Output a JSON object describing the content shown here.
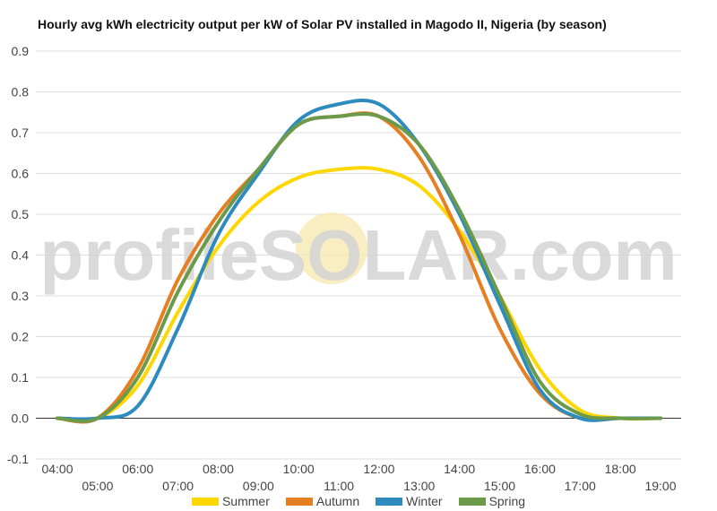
{
  "watermark": "profileSOLAR.com",
  "chart_data": {
    "type": "line",
    "title": "Hourly avg kWh electricity output per kW of Solar PV installed in Magodo II, Nigeria (by season)",
    "xlabel": "",
    "ylabel": "",
    "ylim": [
      -0.1,
      0.9
    ],
    "yticks": [
      "-0.1",
      "0.0",
      "0.1",
      "0.2",
      "0.3",
      "0.4",
      "0.5",
      "0.6",
      "0.7",
      "0.8",
      "0.9"
    ],
    "x": [
      "04:00",
      "05:00",
      "06:00",
      "07:00",
      "08:00",
      "09:00",
      "10:00",
      "11:00",
      "12:00",
      "13:00",
      "14:00",
      "15:00",
      "16:00",
      "17:00",
      "18:00",
      "19:00"
    ],
    "grid": true,
    "legend": "bottom",
    "series": [
      {
        "name": "Summer",
        "color": "#ffd700",
        "values": [
          0.0,
          0.0,
          0.08,
          0.26,
          0.42,
          0.53,
          0.59,
          0.61,
          0.61,
          0.57,
          0.46,
          0.3,
          0.12,
          0.02,
          0.0,
          0.0
        ]
      },
      {
        "name": "Autumn",
        "color": "#e67e22",
        "values": [
          0.0,
          0.0,
          0.12,
          0.34,
          0.5,
          0.61,
          0.72,
          0.74,
          0.74,
          0.64,
          0.45,
          0.22,
          0.06,
          0.0,
          0.0,
          0.0
        ]
      },
      {
        "name": "Winter",
        "color": "#2e8bbf",
        "values": [
          0.0,
          0.0,
          0.03,
          0.22,
          0.45,
          0.6,
          0.73,
          0.77,
          0.77,
          0.67,
          0.5,
          0.28,
          0.07,
          0.0,
          0.0,
          0.0
        ]
      },
      {
        "name": "Spring",
        "color": "#6a9a4a",
        "values": [
          0.0,
          0.0,
          0.1,
          0.31,
          0.48,
          0.61,
          0.72,
          0.74,
          0.74,
          0.67,
          0.51,
          0.3,
          0.09,
          0.01,
          0.0,
          0.0
        ]
      }
    ]
  }
}
